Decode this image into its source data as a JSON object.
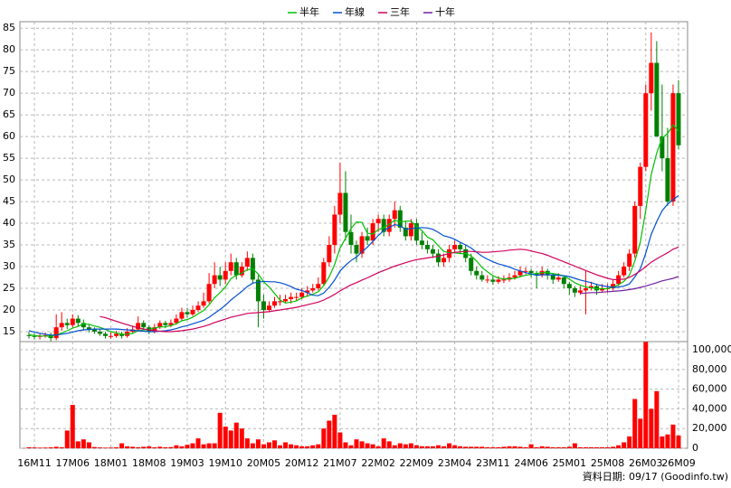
{
  "chart_data": {
    "type": "candlestick",
    "legend": "top",
    "grid": true,
    "up_color": "#ff0000",
    "down_color": "#008000",
    "source": "資料日期: 09/17  (Goodinfo.tw)",
    "categories": [
      null,
      "16M11",
      null,
      null,
      null,
      null,
      null,
      null,
      "17M06",
      null,
      null,
      null,
      null,
      null,
      null,
      "18M01",
      null,
      null,
      null,
      null,
      null,
      null,
      "18M08",
      null,
      null,
      null,
      null,
      null,
      null,
      "19M03",
      null,
      null,
      null,
      null,
      null,
      null,
      "19M10",
      null,
      null,
      null,
      null,
      null,
      null,
      "20M05",
      null,
      null,
      null,
      null,
      null,
      null,
      "20M12",
      null,
      null,
      null,
      null,
      null,
      null,
      "21M07",
      null,
      null,
      null,
      null,
      null,
      null,
      "22M02",
      null,
      null,
      null,
      null,
      null,
      null,
      "22M09",
      null,
      null,
      null,
      null,
      null,
      null,
      "23M04",
      null,
      null,
      null,
      null,
      null,
      null,
      "23M11",
      null,
      null,
      null,
      null,
      null,
      null,
      "24M06",
      null,
      null,
      null,
      null,
      null,
      null,
      "25M01",
      null,
      null,
      null,
      null,
      null,
      null,
      "25M08",
      null,
      null,
      null,
      null,
      null,
      null,
      "26M03",
      null,
      null,
      null,
      null,
      null,
      "26M09"
    ],
    "open": [
      14.2,
      14,
      13.8,
      14,
      14.2,
      13.5,
      16,
      17,
      16.5,
      18,
      17,
      16,
      15.5,
      15,
      14.5,
      14,
      14,
      14.5,
      14,
      15,
      15.5,
      17,
      16,
      15,
      16,
      17,
      16.5,
      17,
      18,
      19.5,
      19,
      20,
      21,
      22,
      26,
      28,
      27,
      29,
      31,
      28,
      30,
      32,
      27,
      22,
      20,
      21,
      22,
      22,
      22.5,
      23,
      23,
      24,
      24.5,
      25,
      26,
      31,
      35,
      42,
      47,
      38,
      35,
      33,
      37,
      36,
      40,
      41,
      38,
      41,
      43,
      39,
      37,
      40,
      36,
      35,
      34,
      33,
      31,
      32,
      34,
      35,
      34,
      32,
      29,
      28,
      27,
      27,
      26.5,
      27,
      27,
      27.5,
      28,
      29,
      29,
      28.5,
      28,
      29,
      28,
      27,
      27.5,
      26,
      25,
      24,
      24.5,
      25,
      25.5,
      24.5,
      25,
      25,
      26,
      28,
      30,
      33,
      44,
      53,
      70,
      77,
      60,
      55,
      45,
      70
    ],
    "high": [
      15,
      14.6,
      14.6,
      14.8,
      14.8,
      19,
      19.5,
      18,
      19,
      18.8,
      17.8,
      16.6,
      16,
      15.6,
      15,
      14.8,
      15.2,
      15,
      15.8,
      16.4,
      18.5,
      17.6,
      16.5,
      16.8,
      17.6,
      17.5,
      17.8,
      19,
      20.5,
      20.5,
      21,
      22,
      24,
      28.5,
      31,
      30,
      31,
      33,
      32,
      31,
      33.5,
      33,
      28,
      23.5,
      22,
      23,
      23.5,
      23.5,
      24,
      24,
      25,
      25.5,
      26,
      27.5,
      32,
      37,
      44,
      54,
      52,
      42,
      36,
      38,
      39,
      41,
      42,
      42,
      42,
      45,
      44,
      40.5,
      41,
      41,
      38,
      36,
      35,
      34,
      33,
      35,
      36,
      35.5,
      35,
      33,
      30,
      29,
      28,
      27.8,
      27.8,
      28,
      28.5,
      29,
      30,
      29.8,
      29.5,
      29,
      30,
      29.5,
      28.5,
      28.5,
      28,
      26.5,
      25.5,
      25.5,
      29,
      26.5,
      26,
      26,
      26,
      27,
      29,
      31,
      34,
      45,
      54,
      72,
      84,
      82,
      72,
      62,
      72,
      73
    ],
    "low": [
      13.4,
      13.2,
      13.2,
      13.6,
      12.8,
      13,
      15.2,
      15.6,
      16,
      16.2,
      15.2,
      14.8,
      14.5,
      14,
      13.4,
      13.4,
      13.6,
      13.4,
      13.6,
      14.6,
      15,
      15.5,
      14.4,
      14.6,
      15.6,
      15.8,
      16,
      16.6,
      17.5,
      18.2,
      18.6,
      19.5,
      20.5,
      21.5,
      25,
      25.5,
      26,
      28,
      27,
      27.5,
      29,
      26,
      16,
      18,
      19.5,
      20.5,
      21,
      21.5,
      21.5,
      22,
      22.5,
      23,
      24,
      24.5,
      25.5,
      30,
      33,
      40,
      36,
      33,
      31,
      32,
      35,
      35,
      38,
      37,
      37,
      39,
      38,
      36,
      36,
      35,
      34,
      33,
      32,
      30,
      30,
      31,
      33,
      33,
      31,
      28,
      27,
      26.5,
      26.2,
      25.8,
      26,
      26.2,
      26.5,
      27,
      27.5,
      28.2,
      27.5,
      25,
      27.5,
      27,
      26,
      26.5,
      25,
      23.5,
      23,
      23.5,
      19,
      24.5,
      23.5,
      24,
      24,
      24.5,
      25.5,
      27.5,
      29,
      32,
      41,
      52,
      66,
      60,
      52,
      44,
      44,
      57
    ],
    "close": [
      14,
      13.8,
      14,
      14.2,
      13.5,
      16,
      17,
      16.5,
      18,
      17,
      16,
      15.5,
      15,
      14.5,
      14,
      14,
      14.5,
      14,
      15,
      15.5,
      17,
      16,
      15,
      16,
      17,
      16.5,
      17,
      18,
      19.5,
      19,
      20,
      21,
      22,
      26,
      28,
      27,
      29,
      31,
      28,
      30,
      32,
      27,
      22,
      20,
      21,
      22,
      22,
      22.5,
      23,
      23,
      24,
      24.5,
      25,
      26,
      31,
      35,
      42,
      47,
      38,
      35,
      33,
      37,
      36,
      40,
      41,
      38,
      41,
      43,
      39,
      37,
      40,
      36,
      35,
      34,
      33,
      31,
      32,
      34,
      35,
      34,
      32,
      29,
      28,
      27,
      27,
      26.5,
      27,
      27,
      27.5,
      28,
      29,
      29,
      28.5,
      28,
      29,
      28,
      27,
      27.5,
      26,
      25,
      24,
      24.5,
      25,
      25.5,
      24.5,
      25,
      25,
      26,
      28,
      30,
      33,
      44,
      53,
      70,
      77,
      60,
      55,
      45,
      70,
      58
    ],
    "ylim": [
      12.7,
      86.5
    ],
    "yticks": [
      15,
      20,
      25,
      30,
      35,
      40,
      45,
      50,
      55,
      60,
      65,
      70,
      75,
      80,
      85
    ],
    "lines": [
      {
        "name": "半年",
        "color": "#00c000",
        "values": [
          14.3,
          14.1,
          14,
          14,
          13.9,
          14.2,
          14.7,
          15.2,
          15.8,
          16.2,
          16.8,
          16.7,
          16.3,
          16,
          15.5,
          15,
          14.7,
          14.4,
          14.4,
          14.6,
          15.2,
          15.4,
          15.5,
          15.8,
          16.1,
          16.1,
          16.4,
          16.8,
          17.5,
          17.8,
          18.3,
          19.1,
          19.9,
          21.2,
          22.8,
          24,
          25.3,
          27.2,
          28,
          28.5,
          29.3,
          29.5,
          28.3,
          26.5,
          25.3,
          23.8,
          22.3,
          21.6,
          21.8,
          22.1,
          22.8,
          23.2,
          23.6,
          24.2,
          25.6,
          27.6,
          30.5,
          34.3,
          36.5,
          38.8,
          40.3,
          40.2,
          37.7,
          37.5,
          38.5,
          39,
          39.8,
          40.7,
          40.3,
          40.5,
          40.5,
          39.3,
          38.3,
          36.8,
          36.2,
          34.8,
          33.5,
          33.2,
          33.2,
          33,
          33,
          32.5,
          31.3,
          29.8,
          28.8,
          27.9,
          27.4,
          27.1,
          27.2,
          27.3,
          27.7,
          28,
          28.2,
          28.4,
          28.6,
          28.6,
          28.4,
          28.2,
          27.8,
          27.1,
          26.3,
          25.7,
          25.3,
          25.1,
          24.9,
          24.9,
          24.9,
          25.3,
          25.8,
          26.6,
          28,
          31.3,
          35.7,
          43,
          51.2,
          56.2,
          59.7,
          60.7,
          62.7,
          61.3
        ]
      },
      {
        "name": "年線",
        "color": "#0050d0",
        "values": [
          15.2,
          14.9,
          14.6,
          14.4,
          14.2,
          14.2,
          14.4,
          14.6,
          14.9,
          15.2,
          15.4,
          15.5,
          15.6,
          15.6,
          15.6,
          15.6,
          15.6,
          15.5,
          15.4,
          15.3,
          15.2,
          15.1,
          15,
          15,
          15.1,
          15.2,
          15.4,
          15.7,
          16.1,
          16.4,
          16.8,
          17.2,
          17.6,
          18.3,
          19.2,
          20.1,
          21.1,
          22.3,
          23.3,
          24.3,
          25.4,
          26.2,
          26.4,
          26.6,
          26.5,
          26.5,
          26.3,
          25.9,
          25.4,
          24.8,
          24.5,
          24,
          23.4,
          23.3,
          23.9,
          25.2,
          26.9,
          29,
          30.3,
          31.4,
          32.2,
          33.4,
          34.5,
          35.8,
          37.2,
          38.3,
          39,
          39.7,
          39.4,
          38.6,
          38.8,
          38.9,
          39,
          38.9,
          38.6,
          37.9,
          37.1,
          36.8,
          36.3,
          35.6,
          35,
          34.3,
          33.3,
          32.4,
          31.7,
          31.1,
          30.6,
          30.3,
          29.9,
          29.4,
          29,
          28.6,
          28.3,
          28,
          28.1,
          28.1,
          28.1,
          28,
          27.9,
          27.7,
          27.3,
          26.9,
          26.6,
          26.3,
          25.9,
          25.6,
          25.4,
          25.2,
          25.3,
          25.5,
          26,
          27.6,
          29.5,
          33.1,
          37.4,
          40.4,
          42.9,
          44.4,
          45.4,
          46.4
        ]
      },
      {
        "name": "三年",
        "color": "#d0005a",
        "values": [
          null,
          null,
          null,
          null,
          null,
          null,
          null,
          null,
          null,
          null,
          null,
          null,
          null,
          18.5,
          18.2,
          17.8,
          17.4,
          17,
          16.6,
          16.2,
          15.9,
          15.6,
          15.4,
          15.2,
          15.1,
          15,
          15,
          15.1,
          15.2,
          15.4,
          15.6,
          15.9,
          16.2,
          16.6,
          17.1,
          17.5,
          17.9,
          18.3,
          18.6,
          18.9,
          19.2,
          19.3,
          19.4,
          19.5,
          19.6,
          19.8,
          20,
          20.2,
          20.4,
          20.6,
          20.9,
          21.2,
          21.5,
          21.8,
          22.3,
          22.9,
          23.6,
          24.4,
          25.1,
          25.8,
          26.3,
          26.9,
          27.4,
          28,
          28.6,
          29.1,
          29.6,
          30.1,
          30.5,
          30.9,
          31.3,
          31.6,
          31.8,
          32,
          32.2,
          32.4,
          32.7,
          33,
          33.3,
          33.4,
          33.5,
          33.5,
          33.4,
          33.3,
          33.3,
          33.4,
          33.5,
          33.6,
          33.8,
          33.9,
          34,
          33.9,
          33.6,
          33.3,
          33,
          32.6,
          32.1,
          31.6,
          31.1,
          30.6,
          30.1,
          29.6,
          29.1,
          28.6,
          28.1,
          27.7,
          27.3,
          27,
          27,
          27.1,
          27.5,
          28.2,
          29,
          30,
          31,
          31.8,
          32.5,
          33.2,
          34,
          34.5
        ]
      },
      {
        "name": "十年",
        "color": "#7020a0",
        "values": [
          null,
          null,
          null,
          null,
          null,
          null,
          null,
          null,
          null,
          null,
          null,
          null,
          null,
          null,
          null,
          null,
          null,
          null,
          null,
          null,
          null,
          null,
          null,
          null,
          null,
          null,
          null,
          null,
          null,
          null,
          null,
          null,
          null,
          null,
          null,
          null,
          null,
          null,
          null,
          null,
          null,
          null,
          null,
          null,
          null,
          null,
          null,
          null,
          null,
          null,
          null,
          null,
          null,
          null,
          null,
          null,
          null,
          null,
          null,
          null,
          null,
          null,
          null,
          null,
          null,
          null,
          null,
          null,
          null,
          null,
          null,
          null,
          null,
          null,
          null,
          null,
          null,
          null,
          null,
          null,
          null,
          null,
          null,
          null,
          null,
          null,
          null,
          null,
          null,
          null,
          null,
          null,
          null,
          null,
          null,
          null,
          null,
          null,
          null,
          null,
          null,
          23.8,
          23.9,
          24,
          24,
          24.1,
          24.2,
          24.3,
          24.4,
          24.5,
          24.7,
          24.9,
          25.2,
          25.5,
          25.9,
          26.3,
          26.7,
          27,
          27.3,
          27.7
        ]
      }
    ],
    "volume": {
      "color": "#ff0000",
      "ylim": [
        0,
        108300
      ],
      "yticks": [
        0,
        {
          "value": 20000,
          "label": "20,000"
        },
        {
          "value": 40000,
          "label": "40,000"
        },
        {
          "value": 60000,
          "label": "60,000"
        },
        {
          "value": 80000,
          "label": "80,000"
        },
        {
          "value": 100000,
          "label": "100,000"
        }
      ],
      "values": [
        1000,
        800,
        600,
        700,
        900,
        1500,
        1000,
        18000,
        44000,
        7000,
        9000,
        6000,
        1200,
        800,
        600,
        700,
        900,
        5000,
        2000,
        1500,
        1000,
        1500,
        2000,
        1000,
        1500,
        1000,
        1200,
        3000,
        2000,
        3500,
        5000,
        10000,
        4000,
        5000,
        5000,
        36000,
        22000,
        18000,
        26000,
        20000,
        10000,
        5000,
        9000,
        4000,
        6000,
        8000,
        3000,
        6000,
        4000,
        3000,
        2000,
        2000,
        3000,
        4000,
        20000,
        28000,
        34000,
        16000,
        6000,
        3000,
        9000,
        7000,
        5000,
        4000,
        2000,
        10000,
        7000,
        3000,
        5000,
        4000,
        5000,
        3000,
        2000,
        2000,
        2000,
        3000,
        2000,
        5000,
        3000,
        2000,
        1500,
        1500,
        1500,
        1500,
        1000,
        1000,
        1000,
        1500,
        2000,
        2000,
        1500,
        1000,
        4000,
        1000,
        2000,
        1500,
        1000,
        1000,
        1000,
        1500,
        5000,
        1000,
        1000,
        1000,
        1000,
        1000,
        1000,
        1500,
        3000,
        6000,
        12000,
        50000,
        30000,
        108000,
        40000,
        58000,
        12000,
        14000,
        24000,
        13000
      ]
    }
  }
}
